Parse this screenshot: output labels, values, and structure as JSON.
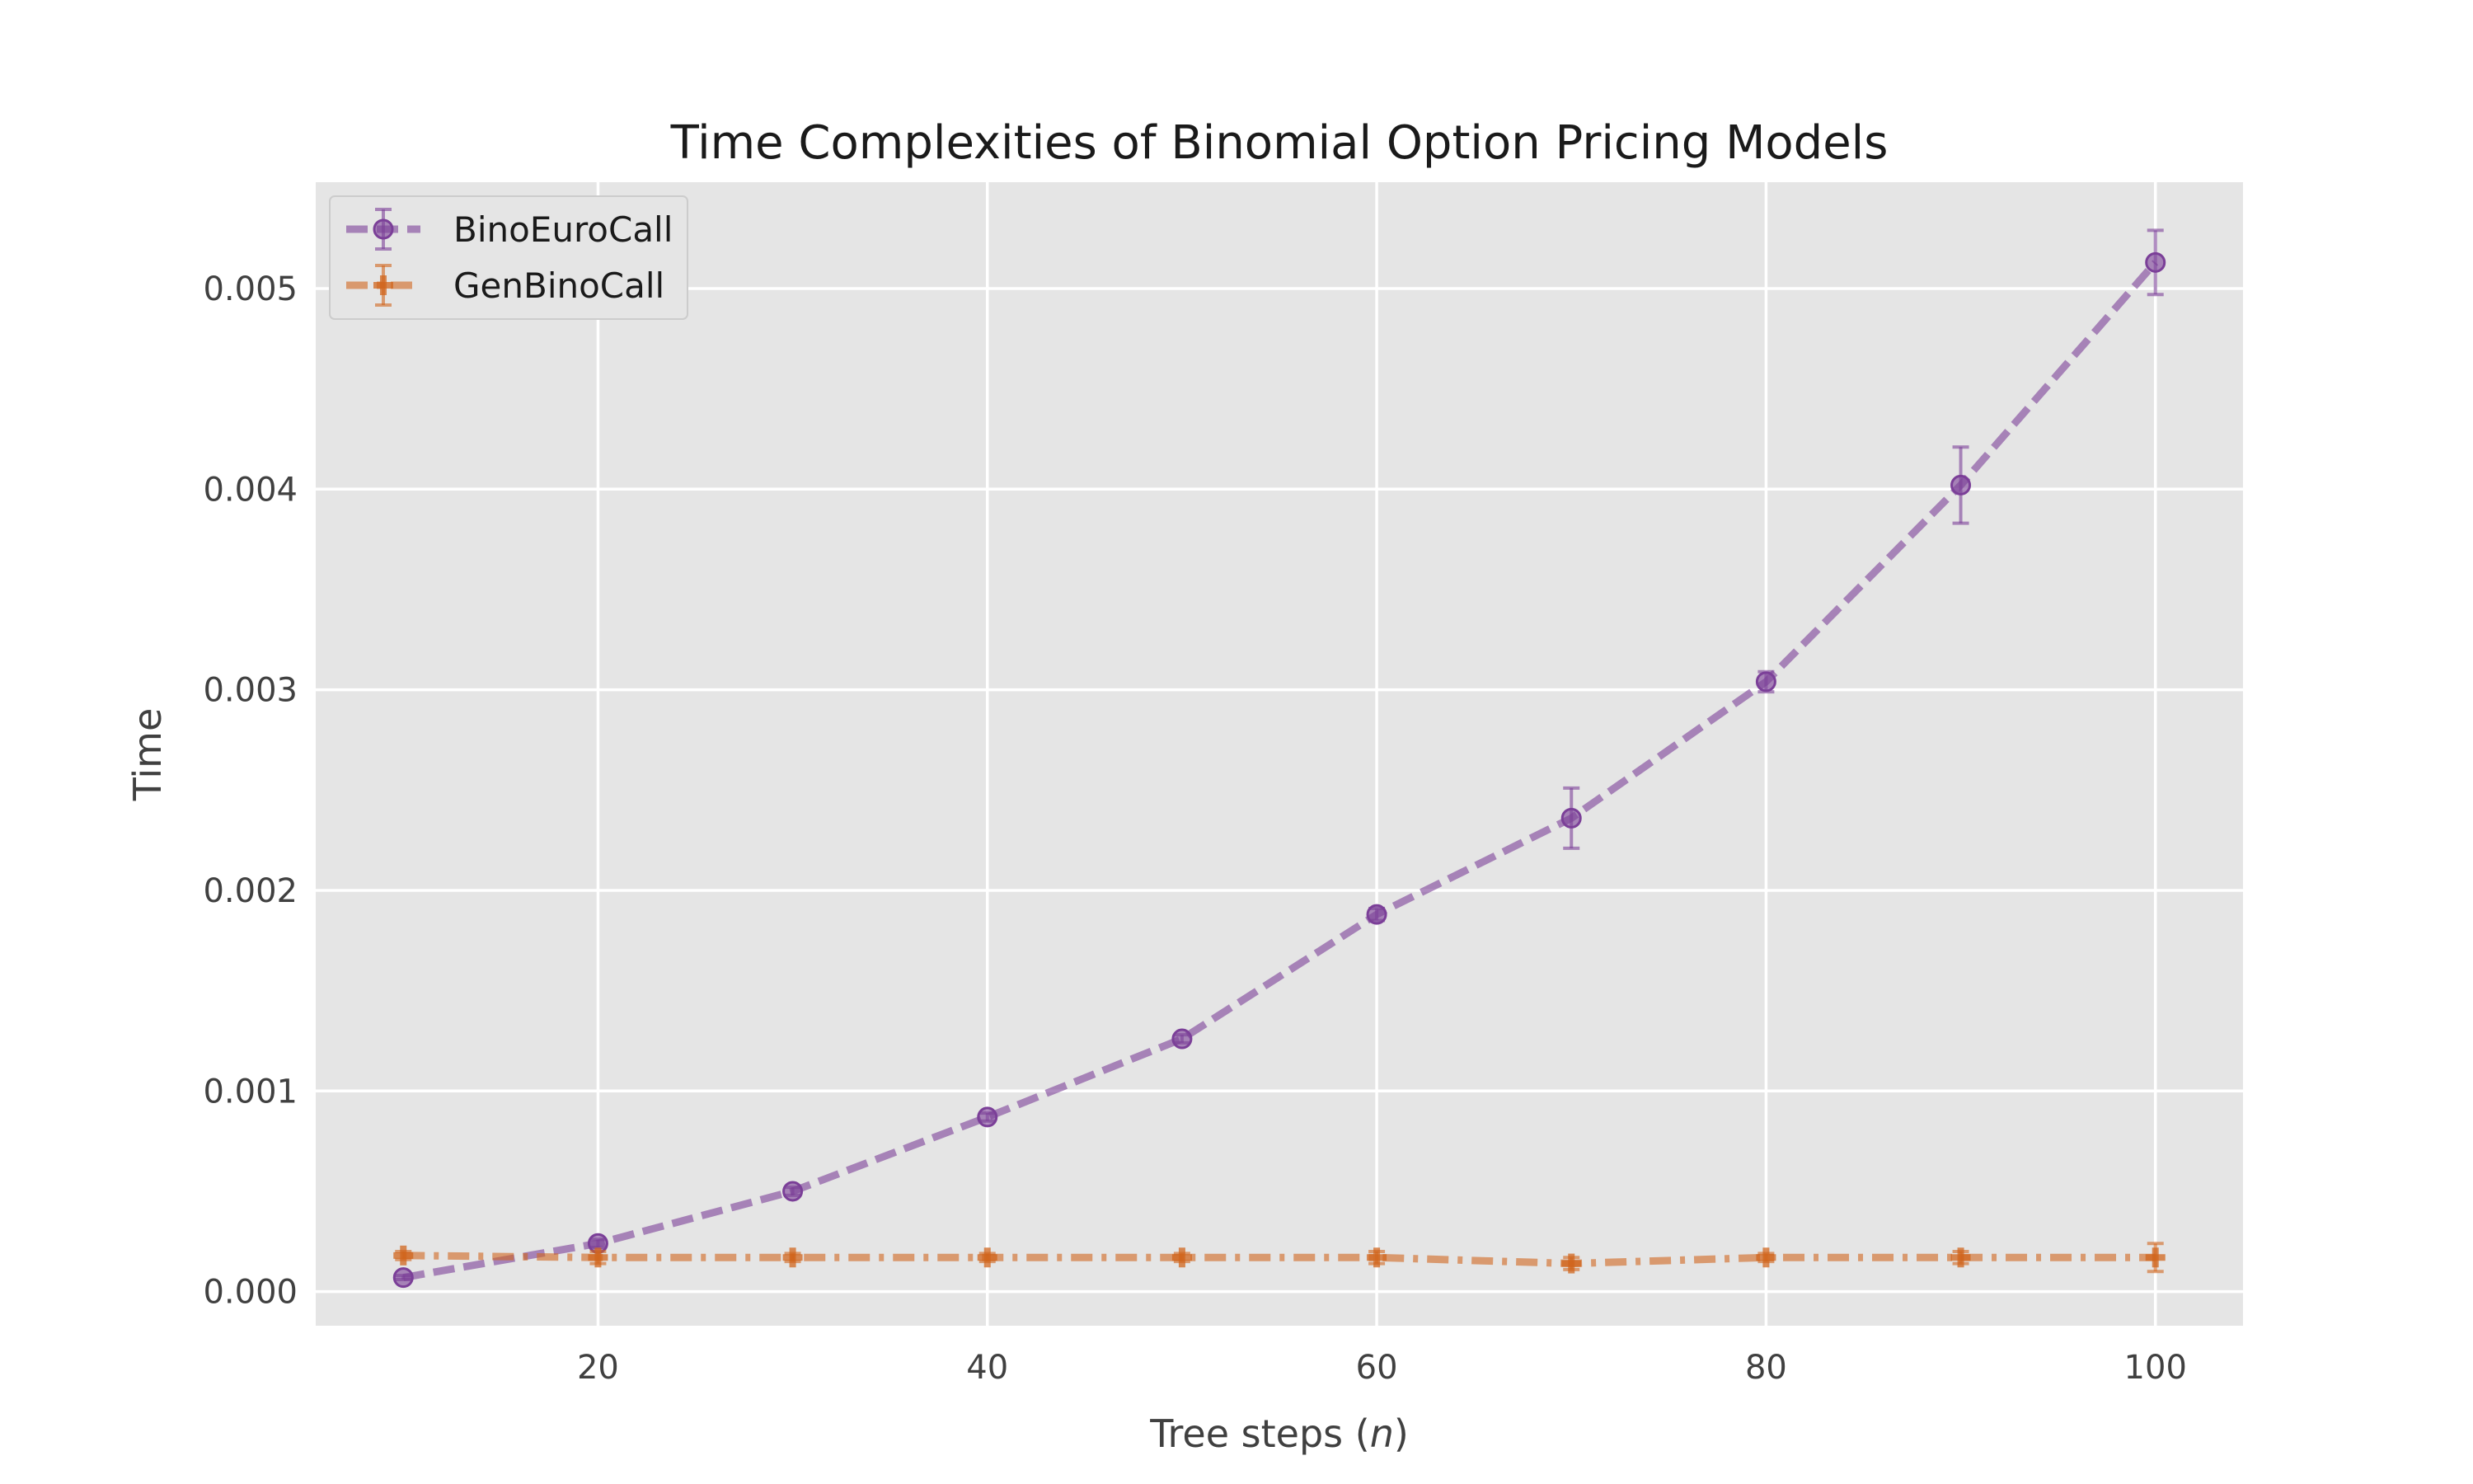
{
  "chart_data": {
    "type": "line",
    "title": "Time Complexities of Binomial Option Pricing Models",
    "xlabel": "Tree steps (",
    "xlabel_var": "n",
    "xlabel_suffix": ")",
    "ylabel": "Time",
    "xlim": [
      5.5,
      104.5
    ],
    "ylim": [
      -0.00017,
      0.00553
    ],
    "x_ticks": [
      20,
      40,
      60,
      80,
      100
    ],
    "y_ticks": [
      0.0,
      0.001,
      0.002,
      0.003,
      0.004,
      0.005
    ],
    "x_tick_labels": [
      "20",
      "40",
      "60",
      "80",
      "100"
    ],
    "y_tick_labels": [
      "0.000",
      "0.001",
      "0.002",
      "0.003",
      "0.004",
      "0.005"
    ],
    "grid": true,
    "legend_position": "top-left",
    "x": [
      10,
      20,
      30,
      40,
      50,
      60,
      70,
      80,
      90,
      100
    ],
    "series": [
      {
        "name": "BinoEuroCall",
        "values": [
          7e-05,
          0.00024,
          0.0005,
          0.00087,
          0.00126,
          0.00188,
          0.00236,
          0.00304,
          0.00402,
          0.00513
        ],
        "errors": [
          1e-05,
          2e-05,
          2e-05,
          2e-05,
          2e-05,
          3e-05,
          0.00015,
          5e-05,
          0.00019,
          0.00016
        ],
        "color": "#7b3f98",
        "marker": "circle",
        "linestyle": "dashed"
      },
      {
        "name": "GenBinoCall",
        "values": [
          0.00018,
          0.00017,
          0.00017,
          0.00017,
          0.00017,
          0.00017,
          0.00014,
          0.00017,
          0.00017,
          0.00017
        ],
        "errors": [
          2e-05,
          3e-05,
          2e-05,
          2e-05,
          2e-05,
          3e-05,
          3e-05,
          2e-05,
          3e-05,
          7e-05
        ],
        "color": "#d0651e",
        "marker": "plus",
        "linestyle": "dashdot"
      }
    ]
  }
}
